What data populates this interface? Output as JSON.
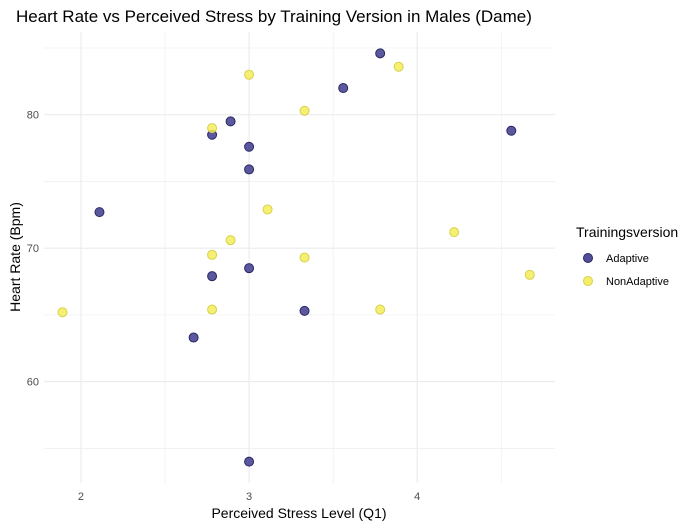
{
  "chart_data": {
    "type": "scatter",
    "title": "Heart Rate vs Perceived Stress by Training Version in Males (Dame)",
    "xlabel": "Perceived Stress Level (Q1)",
    "ylabel": "Heart Rate (Bpm)",
    "xlim": [
      1.78,
      4.82
    ],
    "ylim": [
      52.4,
      86.2
    ],
    "xticks": [
      2,
      3,
      4
    ],
    "yticks": [
      60,
      70,
      80
    ],
    "grid": true,
    "legend": {
      "title": "Trainingsversion",
      "placement": "right",
      "entries": [
        "Adaptive",
        "NonAdaptive"
      ]
    },
    "series": [
      {
        "name": "Adaptive",
        "color": "#3f3b8c",
        "points": [
          [
            2.11,
            72.7
          ],
          [
            2.67,
            63.3
          ],
          [
            2.78,
            78.5
          ],
          [
            2.78,
            67.9
          ],
          [
            2.89,
            79.5
          ],
          [
            3.0,
            77.6
          ],
          [
            3.0,
            75.9
          ],
          [
            3.0,
            68.5
          ],
          [
            3.0,
            54.0
          ],
          [
            3.33,
            65.3
          ],
          [
            3.56,
            82.0
          ],
          [
            3.78,
            84.6
          ],
          [
            4.56,
            78.8
          ]
        ]
      },
      {
        "name": "NonAdaptive",
        "color": "#f3ec5a",
        "points": [
          [
            1.89,
            65.2
          ],
          [
            2.78,
            79.0
          ],
          [
            2.78,
            69.5
          ],
          [
            2.78,
            65.4
          ],
          [
            2.89,
            70.6
          ],
          [
            3.0,
            83.0
          ],
          [
            3.11,
            72.9
          ],
          [
            3.33,
            80.3
          ],
          [
            3.33,
            69.3
          ],
          [
            3.78,
            65.4
          ],
          [
            3.89,
            83.6
          ],
          [
            4.22,
            71.2
          ],
          [
            4.67,
            68.0
          ]
        ]
      }
    ]
  }
}
